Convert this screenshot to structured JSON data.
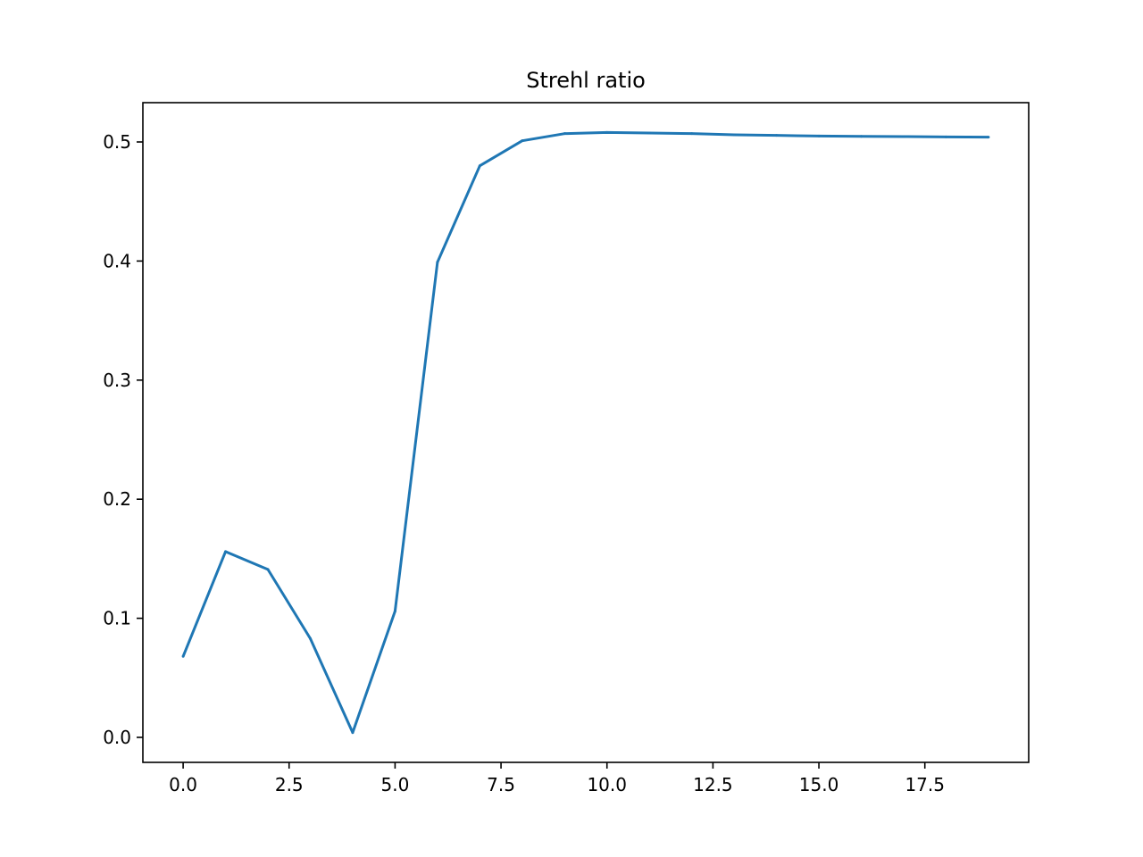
{
  "chart_data": {
    "type": "line",
    "title": "Strehl ratio",
    "xlabel": "",
    "ylabel": "",
    "xlim": [
      -0.95,
      19.95
    ],
    "ylim": [
      -0.021,
      0.533
    ],
    "grid": false,
    "x_ticks": [
      0.0,
      2.5,
      5.0,
      7.5,
      10.0,
      12.5,
      15.0,
      17.5
    ],
    "x_tick_labels": [
      "0.0",
      "2.5",
      "5.0",
      "7.5",
      "10.0",
      "12.5",
      "15.0",
      "17.5"
    ],
    "y_ticks": [
      0.0,
      0.1,
      0.2,
      0.3,
      0.4,
      0.5
    ],
    "y_tick_labels": [
      "0.0",
      "0.1",
      "0.2",
      "0.3",
      "0.4",
      "0.5"
    ],
    "series": [
      {
        "color": "#1f77b4",
        "x": [
          0,
          1,
          2,
          3,
          4,
          5,
          6,
          7,
          8,
          9,
          10,
          11,
          12,
          13,
          14,
          15,
          16,
          17,
          18,
          19
        ],
        "y": [
          0.068,
          0.156,
          0.141,
          0.083,
          0.004,
          0.106,
          0.399,
          0.48,
          0.501,
          0.507,
          0.508,
          0.5075,
          0.507,
          0.506,
          0.5055,
          0.505,
          0.5047,
          0.5045,
          0.5042,
          0.504
        ]
      }
    ]
  }
}
